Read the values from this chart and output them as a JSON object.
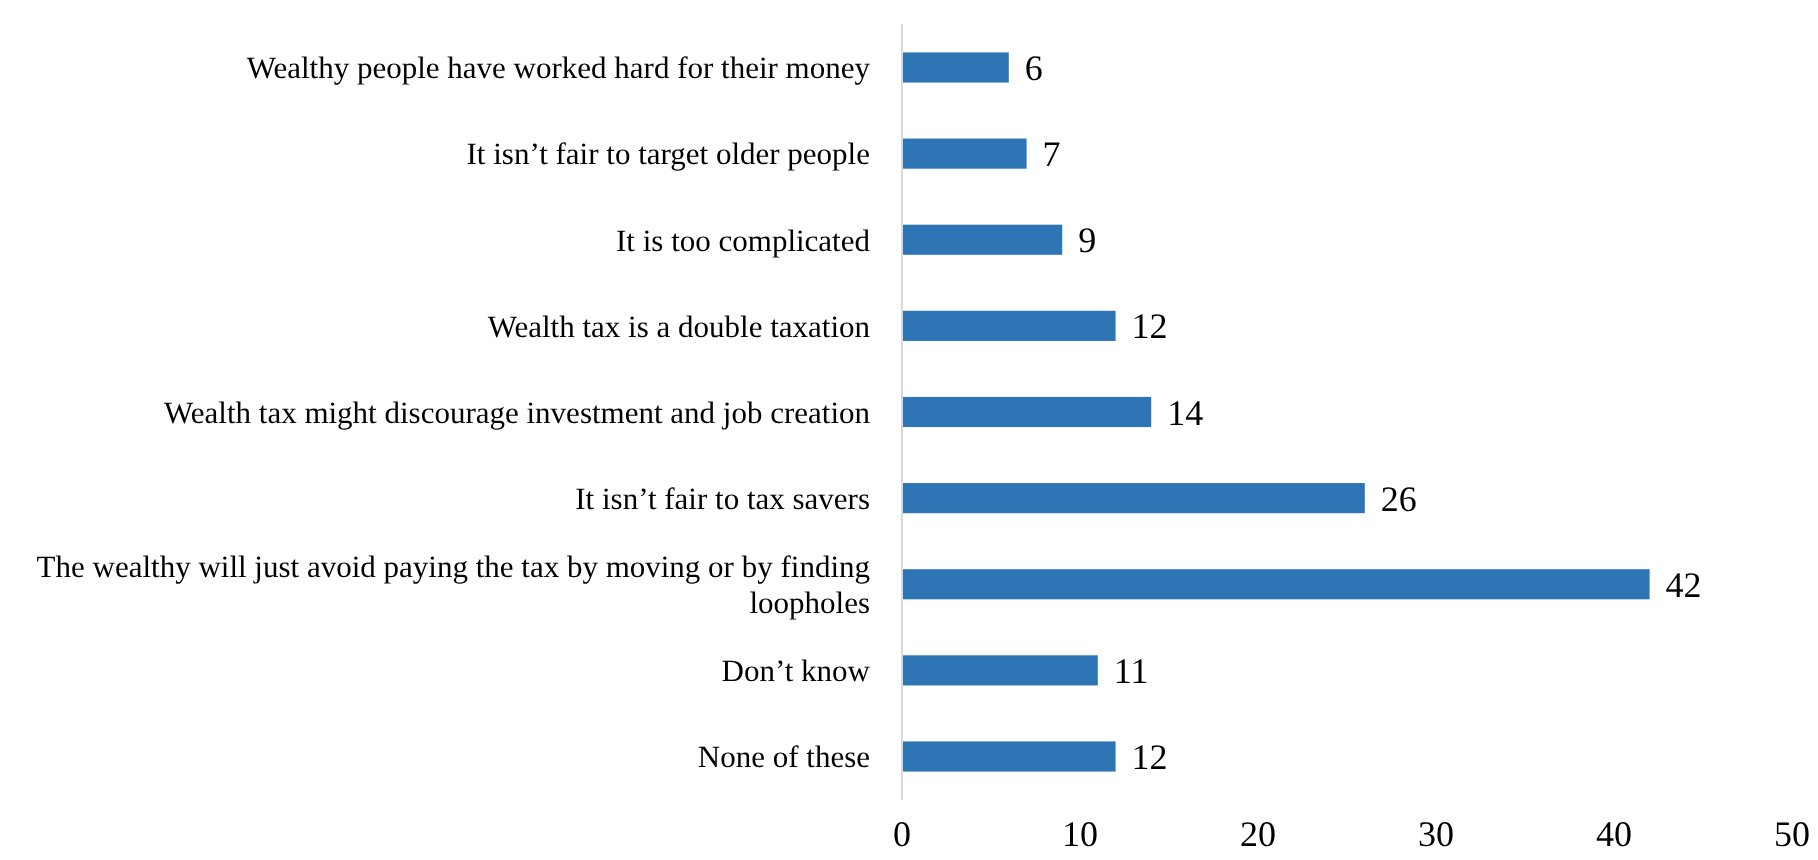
{
  "chart_data": {
    "type": "bar",
    "orientation": "horizontal",
    "categories": [
      "Wealthy people have worked hard for their money",
      "It isn’t fair to target older people",
      "It is too complicated",
      "Wealth tax is a double taxation",
      "Wealth tax might discourage investment and job creation",
      "It isn’t fair to tax savers",
      "The wealthy will just avoid paying the tax by moving or by finding loopholes",
      "Don’t know",
      "None of these"
    ],
    "values": [
      6,
      7,
      9,
      12,
      14,
      26,
      42,
      11,
      12
    ],
    "color": "#2e75b6",
    "xlim": [
      0,
      50
    ],
    "xticks": [
      0,
      10,
      20,
      30,
      40,
      50
    ],
    "data_labels": true,
    "grid": false
  }
}
